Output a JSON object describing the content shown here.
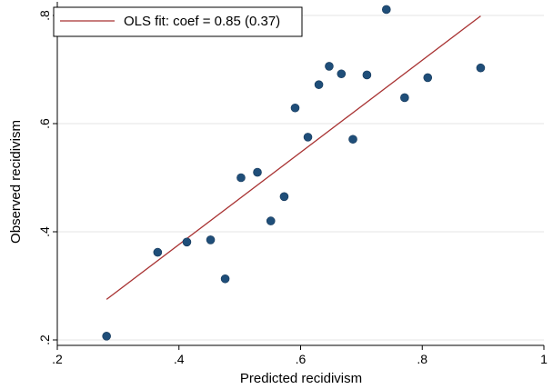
{
  "chart_data": {
    "type": "scatter",
    "xlabel": "Predicted recidivism",
    "ylabel": "Observed recidivism",
    "xlim": [
      0.2,
      1.0
    ],
    "ylim": [
      0.2,
      0.8
    ],
    "xticks": [
      ".2",
      ".4",
      ".6",
      ".8",
      "1"
    ],
    "yticks": [
      ".2",
      ".4",
      ".6",
      ".8"
    ],
    "xtick_values": [
      0.2,
      0.4,
      0.6,
      0.8,
      1.0
    ],
    "ytick_values": [
      0.2,
      0.4,
      0.6,
      0.8
    ],
    "grid": "horizontal",
    "legend": {
      "placement": "top-left",
      "entries": [
        "OLS fit: coef = 0.85 (0.37)"
      ]
    },
    "points": {
      "color": "#1f4e79",
      "x": [
        0.281,
        0.365,
        0.413,
        0.452,
        0.476,
        0.502,
        0.529,
        0.551,
        0.573,
        0.591,
        0.612,
        0.63,
        0.647,
        0.667,
        0.686,
        0.709,
        0.741,
        0.771,
        0.809,
        0.896
      ],
      "y": [
        0.207,
        0.362,
        0.381,
        0.385,
        0.313,
        0.5,
        0.51,
        0.42,
        0.465,
        0.629,
        0.575,
        0.672,
        0.706,
        0.692,
        0.571,
        0.69,
        0.811,
        0.648,
        0.685,
        0.703
      ]
    },
    "fit_line": {
      "color": "#a83232",
      "x": [
        0.281,
        0.896
      ],
      "y": [
        0.275,
        0.799
      ]
    }
  }
}
